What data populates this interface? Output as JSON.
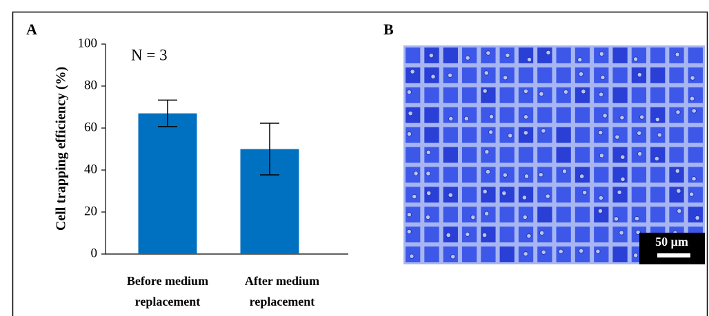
{
  "chart_data": {
    "type": "bar",
    "panel_label": "A",
    "annotation": "N = 3",
    "y_label": "Cell trapping efficiency (%)",
    "categories": [
      "Before medium replacement",
      "After medium replacement"
    ],
    "values": [
      67,
      50
    ],
    "errors": [
      6.3,
      12.3
    ],
    "color": "#0070c0",
    "ylim": [
      0,
      100
    ],
    "yticks": [
      0,
      20,
      40,
      60,
      80,
      100
    ]
  },
  "panel_b": {
    "label": "B",
    "scale_bar": "50 μm"
  }
}
